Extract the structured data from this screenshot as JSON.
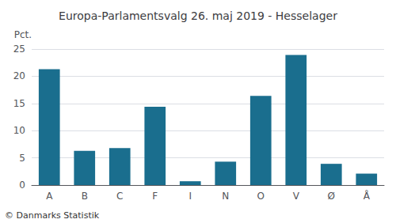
{
  "chart_data": {
    "type": "bar",
    "title": "Europa-Parlamentsvalg 26. maj 2019 - Hesselager",
    "categories": [
      "A",
      "B",
      "C",
      "F",
      "I",
      "N",
      "O",
      "V",
      "Ø",
      "Å"
    ],
    "values": [
      21.3,
      6.3,
      6.8,
      14.4,
      0.7,
      4.3,
      16.4,
      23.9,
      3.9,
      2.1
    ],
    "color": "#1a6e8e",
    "ylabel": "Pct.",
    "ylim": [
      0,
      25
    ],
    "yticks": [
      0,
      5,
      10,
      15,
      20,
      25
    ],
    "grid": true,
    "annotations": [
      "© Danmarks Statistik"
    ]
  }
}
